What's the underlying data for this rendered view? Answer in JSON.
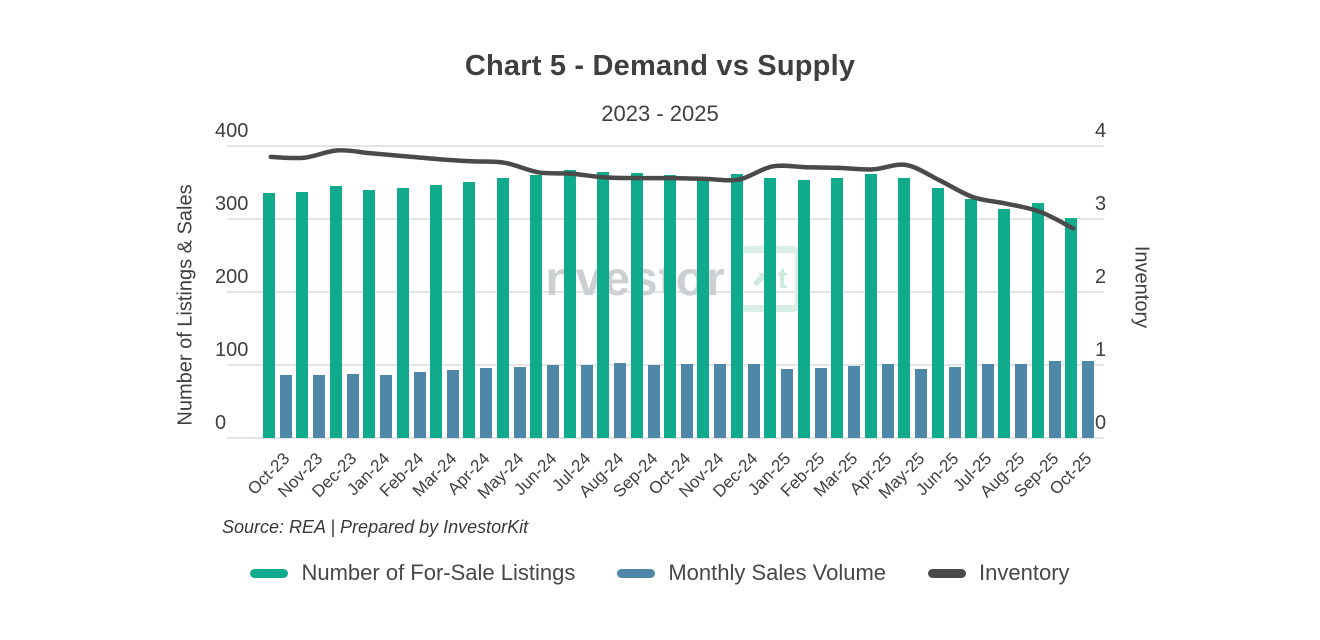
{
  "title": "Chart 5 - Demand vs Supply",
  "subtitle": "2023 - 2025",
  "source_note": "Source: REA | Prepared by InvestorKit",
  "watermark": {
    "text": "Investor",
    "arrow_glyph": "⬈",
    "box_text": "it"
  },
  "colors": {
    "listings_bar": "#10ab8d",
    "sales_bar": "#4e87a8",
    "inventory_line": "#4a4a4a",
    "gridline": "#e4e4e4",
    "tick_text": "#3f3f3f"
  },
  "left_axis": {
    "title": "Number of Listings & Sales",
    "ticks": [
      0,
      100,
      200,
      300,
      400
    ]
  },
  "right_axis": {
    "title": "Inventory",
    "ticks": [
      0,
      1,
      2,
      3,
      4
    ]
  },
  "legend": [
    {
      "label": "Number of For-Sale Listings",
      "color": "#10ab8d"
    },
    {
      "label": "Monthly Sales Volume",
      "color": "#4e87a8"
    },
    {
      "label": "Inventory",
      "color": "#4a4a4a"
    }
  ],
  "chart_data": {
    "type": "bar",
    "subtype": "grouped bars with secondary-axis line",
    "title": "Chart 5 - Demand vs Supply",
    "subtitle": "2023 - 2025",
    "xlabel": "",
    "ylabel_left": "Number of Listings & Sales",
    "ylabel_right": "Inventory",
    "left_ylim": [
      0,
      400
    ],
    "right_ylim": [
      0,
      4
    ],
    "grid": true,
    "legend_position": "bottom",
    "categories": [
      "Oct-23",
      "Nov-23",
      "Dec-23",
      "Jan-24",
      "Feb-24",
      "Mar-24",
      "Apr-24",
      "May-24",
      "Jun-24",
      "Jul-24",
      "Aug-24",
      "Sep-24",
      "Oct-24",
      "Nov-24",
      "Dec-24",
      "Jan-25",
      "Feb-25",
      "Mar-25",
      "Apr-25",
      "May-25",
      "Jun-25",
      "Jul-25",
      "Aug-25",
      "Sep-25",
      "Oct-25"
    ],
    "series": [
      {
        "name": "Number of For-Sale Listings",
        "type": "bar",
        "axis": "left",
        "color": "#10ab8d",
        "values": [
          336,
          337,
          345,
          340,
          342,
          346,
          351,
          356,
          361,
          367,
          365,
          363,
          360,
          355,
          362,
          356,
          354,
          356,
          362,
          356,
          342,
          328,
          314,
          322,
          302
        ]
      },
      {
        "name": "Monthly Sales Volume",
        "type": "bar",
        "axis": "left",
        "color": "#4e87a8",
        "values": [
          87,
          87,
          88,
          87,
          90,
          93,
          96,
          98,
          100,
          100,
          103,
          100,
          101,
          101,
          101,
          95,
          96,
          99,
          101,
          95,
          98,
          101,
          101,
          106,
          106
        ]
      },
      {
        "name": "Inventory",
        "type": "line",
        "axis": "right",
        "color": "#4a4a4a",
        "values": [
          3.85,
          3.84,
          3.94,
          3.9,
          3.86,
          3.82,
          3.79,
          3.77,
          3.64,
          3.62,
          3.57,
          3.56,
          3.56,
          3.55,
          3.54,
          3.72,
          3.71,
          3.7,
          3.68,
          3.74,
          3.53,
          3.3,
          3.21,
          3.1,
          2.87
        ]
      }
    ]
  }
}
